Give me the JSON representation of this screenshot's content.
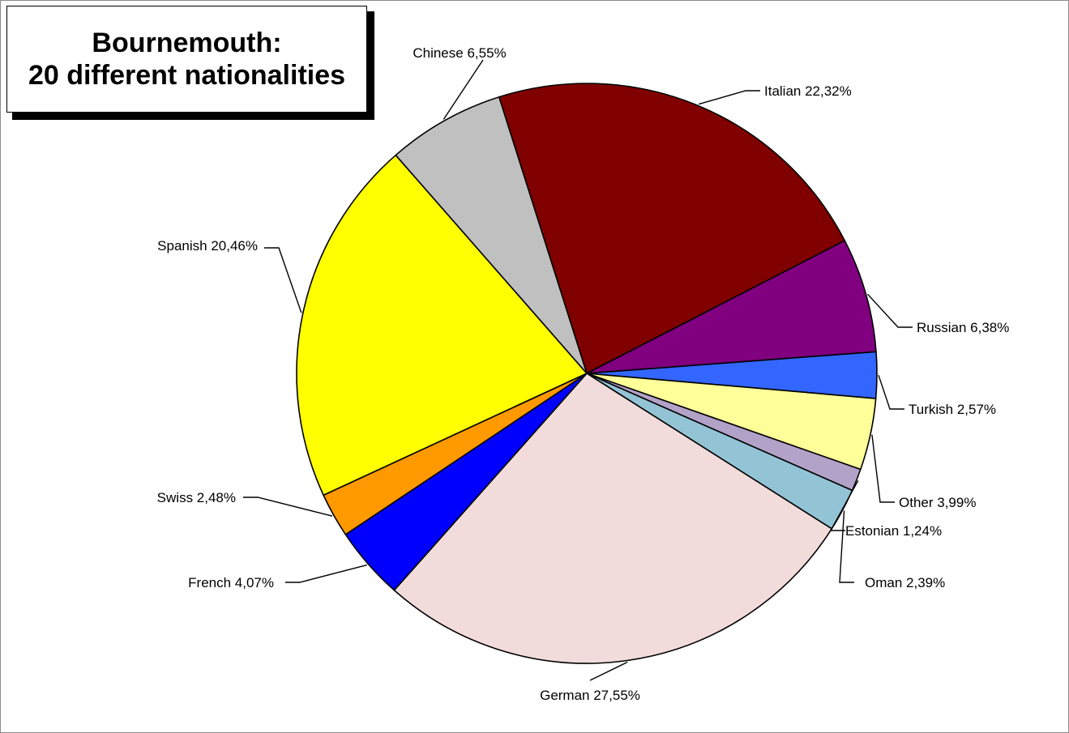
{
  "chart_data": {
    "type": "pie",
    "title": "Bournemouth:",
    "subtitle": "20 different nationalities",
    "slices": [
      {
        "name": "Italian",
        "label": "Italian  22,32%",
        "value": 22.32,
        "color": "#800000"
      },
      {
        "name": "Russian",
        "label": "Russian 6,38%",
        "value": 6.38,
        "color": "#800080"
      },
      {
        "name": "Turkish",
        "label": "Turkish 2,57%",
        "value": 2.57,
        "color": "#3366ff"
      },
      {
        "name": "Other",
        "label": "Other 3,99%",
        "value": 3.99,
        "color": "#ffff99"
      },
      {
        "name": "Estonian",
        "label": "Estonian 1,24%",
        "value": 1.24,
        "color": "#b3a2c7"
      },
      {
        "name": "Oman",
        "label": "Oman 2,39%",
        "value": 2.39,
        "color": "#93c4d6"
      },
      {
        "name": "German",
        "label": "German 27,55%",
        "value": 27.55,
        "color": "#f2dcdb"
      },
      {
        "name": "French",
        "label": "French 4,07%",
        "value": 4.07,
        "color": "#0000ff"
      },
      {
        "name": "Swiss",
        "label": "Swiss 2,48%",
        "value": 2.48,
        "color": "#ff9900"
      },
      {
        "name": "Spanish",
        "label": "Spanish 20,46%",
        "value": 20.46,
        "color": "#ffff00"
      },
      {
        "name": "Chinese",
        "label": "Chinese 6,55%",
        "value": 6.55,
        "color": "#c0c0c0"
      }
    ],
    "legend": "none",
    "data_labels": "outside with leader lines"
  }
}
